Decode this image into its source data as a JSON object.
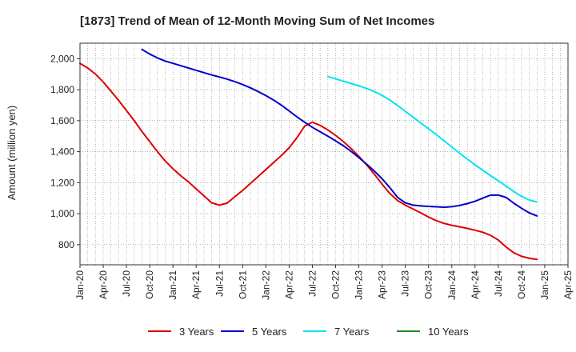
{
  "chart_data": {
    "type": "line",
    "title": "[1873]  Trend of Mean of 12-Month Moving Sum of Net Incomes",
    "xlabel": "",
    "ylabel": "Amount (million yen)",
    "ylim": [
      670,
      2100
    ],
    "yticks": [
      800,
      1000,
      1200,
      1400,
      1600,
      1800,
      2000
    ],
    "ytick_labels": [
      "800",
      "1,000",
      "1,200",
      "1,400",
      "1,600",
      "1,800",
      "2,000"
    ],
    "xlim": [
      "2020-01",
      "2025-04"
    ],
    "xtick_labels": [
      "Jan-20",
      "Apr-20",
      "Jul-20",
      "Oct-20",
      "Jan-21",
      "Apr-21",
      "Jul-21",
      "Oct-21",
      "Jan-22",
      "Apr-22",
      "Jul-22",
      "Oct-22",
      "Jan-23",
      "Apr-23",
      "Jul-23",
      "Oct-23",
      "Jan-24",
      "Apr-24",
      "Jul-24",
      "Oct-24",
      "Jan-25",
      "Apr-25"
    ],
    "xtick_months": [
      "2020-01",
      "2020-04",
      "2020-07",
      "2020-10",
      "2021-01",
      "2021-04",
      "2021-07",
      "2021-10",
      "2022-01",
      "2022-04",
      "2022-07",
      "2022-10",
      "2023-01",
      "2023-04",
      "2023-07",
      "2023-10",
      "2024-01",
      "2024-04",
      "2024-07",
      "2024-10",
      "2025-01",
      "2025-04"
    ],
    "grid": true,
    "legend_position": "bottom",
    "series": [
      {
        "name": "3 Years",
        "color": "#dd0000",
        "points": [
          [
            "2020-01",
            1970
          ],
          [
            "2020-02",
            1940
          ],
          [
            "2020-03",
            1900
          ],
          [
            "2020-04",
            1850
          ],
          [
            "2020-05",
            1790
          ],
          [
            "2020-06",
            1730
          ],
          [
            "2020-07",
            1665
          ],
          [
            "2020-08",
            1600
          ],
          [
            "2020-09",
            1530
          ],
          [
            "2020-10",
            1465
          ],
          [
            "2020-11",
            1400
          ],
          [
            "2020-12",
            1340
          ],
          [
            "2021-01",
            1290
          ],
          [
            "2021-02",
            1245
          ],
          [
            "2021-03",
            1205
          ],
          [
            "2021-04",
            1160
          ],
          [
            "2021-05",
            1115
          ],
          [
            "2021-06",
            1070
          ],
          [
            "2021-07",
            1055
          ],
          [
            "2021-08",
            1068
          ],
          [
            "2021-09",
            1110
          ],
          [
            "2021-10",
            1150
          ],
          [
            "2021-11",
            1195
          ],
          [
            "2021-12",
            1240
          ],
          [
            "2022-01",
            1285
          ],
          [
            "2022-02",
            1330
          ],
          [
            "2022-03",
            1375
          ],
          [
            "2022-04",
            1425
          ],
          [
            "2022-05",
            1490
          ],
          [
            "2022-06",
            1565
          ],
          [
            "2022-07",
            1590
          ],
          [
            "2022-08",
            1570
          ],
          [
            "2022-09",
            1540
          ],
          [
            "2022-10",
            1505
          ],
          [
            "2022-11",
            1465
          ],
          [
            "2022-12",
            1420
          ],
          [
            "2023-01",
            1370
          ],
          [
            "2023-02",
            1315
          ],
          [
            "2023-03",
            1255
          ],
          [
            "2023-04",
            1190
          ],
          [
            "2023-05",
            1130
          ],
          [
            "2023-06",
            1085
          ],
          [
            "2023-07",
            1055
          ],
          [
            "2023-08",
            1030
          ],
          [
            "2023-09",
            1005
          ],
          [
            "2023-10",
            978
          ],
          [
            "2023-11",
            955
          ],
          [
            "2023-12",
            937
          ],
          [
            "2024-01",
            925
          ],
          [
            "2024-02",
            915
          ],
          [
            "2024-03",
            905
          ],
          [
            "2024-04",
            893
          ],
          [
            "2024-05",
            880
          ],
          [
            "2024-06",
            860
          ],
          [
            "2024-07",
            830
          ],
          [
            "2024-08",
            785
          ],
          [
            "2024-09",
            748
          ],
          [
            "2024-10",
            725
          ],
          [
            "2024-11",
            712
          ],
          [
            "2024-12",
            705
          ]
        ]
      },
      {
        "name": "5 Years",
        "color": "#0000cc",
        "points": [
          [
            "2020-09",
            2060
          ],
          [
            "2020-10",
            2030
          ],
          [
            "2020-11",
            2005
          ],
          [
            "2020-12",
            1985
          ],
          [
            "2021-01",
            1970
          ],
          [
            "2021-02",
            1955
          ],
          [
            "2021-03",
            1940
          ],
          [
            "2021-04",
            1925
          ],
          [
            "2021-05",
            1910
          ],
          [
            "2021-06",
            1895
          ],
          [
            "2021-07",
            1882
          ],
          [
            "2021-08",
            1868
          ],
          [
            "2021-09",
            1852
          ],
          [
            "2021-10",
            1833
          ],
          [
            "2021-11",
            1812
          ],
          [
            "2021-12",
            1788
          ],
          [
            "2022-01",
            1762
          ],
          [
            "2022-02",
            1733
          ],
          [
            "2022-03",
            1700
          ],
          [
            "2022-04",
            1663
          ],
          [
            "2022-05",
            1625
          ],
          [
            "2022-06",
            1590
          ],
          [
            "2022-07",
            1557
          ],
          [
            "2022-08",
            1528
          ],
          [
            "2022-09",
            1500
          ],
          [
            "2022-10",
            1470
          ],
          [
            "2022-11",
            1438
          ],
          [
            "2022-12",
            1402
          ],
          [
            "2023-01",
            1362
          ],
          [
            "2023-02",
            1320
          ],
          [
            "2023-03",
            1275
          ],
          [
            "2023-04",
            1225
          ],
          [
            "2023-05",
            1168
          ],
          [
            "2023-06",
            1105
          ],
          [
            "2023-07",
            1070
          ],
          [
            "2023-08",
            1055
          ],
          [
            "2023-09",
            1050
          ],
          [
            "2023-10",
            1047
          ],
          [
            "2023-11",
            1044
          ],
          [
            "2023-12",
            1042
          ],
          [
            "2024-01",
            1045
          ],
          [
            "2024-02",
            1053
          ],
          [
            "2024-03",
            1065
          ],
          [
            "2024-04",
            1080
          ],
          [
            "2024-05",
            1100
          ],
          [
            "2024-06",
            1120
          ],
          [
            "2024-07",
            1120
          ],
          [
            "2024-08",
            1105
          ],
          [
            "2024-09",
            1068
          ],
          [
            "2024-10",
            1035
          ],
          [
            "2024-11",
            1005
          ],
          [
            "2024-12",
            985
          ]
        ]
      },
      {
        "name": "7 Years",
        "color": "#00e5ee",
        "points": [
          [
            "2022-09",
            1885
          ],
          [
            "2022-10",
            1870
          ],
          [
            "2022-11",
            1855
          ],
          [
            "2022-12",
            1840
          ],
          [
            "2023-01",
            1825
          ],
          [
            "2023-02",
            1808
          ],
          [
            "2023-03",
            1788
          ],
          [
            "2023-04",
            1763
          ],
          [
            "2023-05",
            1733
          ],
          [
            "2023-06",
            1698
          ],
          [
            "2023-07",
            1660
          ],
          [
            "2023-08",
            1622
          ],
          [
            "2023-09",
            1585
          ],
          [
            "2023-10",
            1548
          ],
          [
            "2023-11",
            1510
          ],
          [
            "2023-12",
            1470
          ],
          [
            "2024-01",
            1430
          ],
          [
            "2024-02",
            1390
          ],
          [
            "2024-03",
            1352
          ],
          [
            "2024-04",
            1315
          ],
          [
            "2024-05",
            1280
          ],
          [
            "2024-06",
            1245
          ],
          [
            "2024-07",
            1212
          ],
          [
            "2024-08",
            1178
          ],
          [
            "2024-09",
            1143
          ],
          [
            "2024-10",
            1112
          ],
          [
            "2024-11",
            1088
          ],
          [
            "2024-12",
            1075
          ]
        ]
      },
      {
        "name": "10 Years",
        "color": "#228b22",
        "points": []
      }
    ]
  }
}
